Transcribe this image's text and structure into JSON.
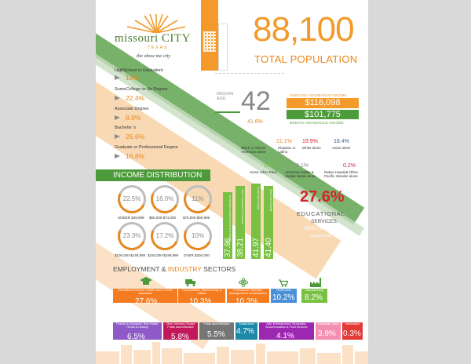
{
  "brand": {
    "name": "missouri CITY",
    "state": "TEXAS",
    "tagline": "the show me city"
  },
  "population": {
    "value": "88,100",
    "label": "TOTAL POPULATION"
  },
  "education_levels": [
    {
      "label": "HighSchool or Equivalent",
      "value": "19%"
    },
    {
      "label": "SomeCollege or No Degree",
      "value": "22.4%"
    },
    {
      "label": "Associate Degree",
      "value": "8.8%"
    },
    {
      "label": "Bachelor 's",
      "value": "26.6%"
    },
    {
      "label": "Graduate or Professional Degree",
      "value": "16.8%"
    }
  ],
  "median_age": {
    "label": "MEDIAN AGE",
    "value": "42",
    "sub_value": "41.6%"
  },
  "household_income": {
    "average_label": "AVERAGE HOUSEHOLD INCOME",
    "average_value": "$116,098",
    "median_value": "$101,775",
    "median_label": "MEDIAN HOUSEHOLD INCOME"
  },
  "race": [
    {
      "label": "Black or African American alone",
      "value": ""
    },
    {
      "label": "Hispanic or Latino",
      "value": "21.1%"
    },
    {
      "label": "White alone",
      "value": "19.9%"
    },
    {
      "label": "Asian alone",
      "value": "18.4%"
    },
    {
      "label": "Some other Race",
      "value": "0.5%"
    },
    {
      "label": "American Indian & Alaska Native alone",
      "value": "0.1%"
    },
    {
      "label": "Native Hawaii& Other Pacific Islander alone",
      "value": "0.2%"
    }
  ],
  "income_distribution": {
    "title": "INCOME DISTRIBUTION",
    "rings": [
      {
        "value": "22.5%",
        "label": "UNDER $49,999"
      },
      {
        "value": "16.0%",
        "label": "$50,000-$74,000"
      },
      {
        "value": "11%",
        "label": "$75,000-$99,999"
      },
      {
        "value": "23.3%",
        "label": "$100,000-$149,999"
      },
      {
        "value": "17.2%",
        "label": "$150,000-$199,999"
      },
      {
        "value": "10%",
        "label": "OVER $200,000"
      }
    ]
  },
  "median_age_bars": [
    {
      "value": "37.96",
      "label": "MEDIAN AGE BLACK/AFRICAN AMERICAN",
      "fill": 0.53
    },
    {
      "value": "38.21",
      "label": "MEDIAN AGE HISPANIC/LATINO",
      "fill": 0.58
    },
    {
      "value": "41.97",
      "label": "MEDIAN AGE WHITE",
      "fill": 0.6
    },
    {
      "value": "41.40",
      "label": "MEDIAN AGE ASIAN",
      "fill": 0.58
    }
  ],
  "top_sector": {
    "value": "27.6%",
    "line1": "EDUCATIONAL",
    "line2": "SERVICES,",
    "line3": "HEALTH CARE &",
    "line4": "ASSISTANCE"
  },
  "employment": {
    "title_a": "EMPLOYMENT & ",
    "title_b": "INDUSTRY",
    "title_c": " SECTORS",
    "row1": [
      {
        "label": "Educational Services, Health Care & Social Assistance",
        "value": "27.6%",
        "color": "#f47b20"
      },
      {
        "label": "Transportation, Warehousing, & Utilities",
        "value": "10.3%",
        "color": "#f47b20"
      },
      {
        "label": "Professional, Scientific, Management & Administrative",
        "value": "10.3%",
        "color": "#f47b20"
      },
      {
        "label": "Retail trade",
        "value": "10.2%",
        "color": "#4a90d9"
      },
      {
        "label": "Manufacturing",
        "value": "8.2%",
        "color": "#7ac143"
      }
    ],
    "row2": [
      {
        "label": "Finance & Insurance, Real Estate, Rental & Leasing",
        "value": "6.5%",
        "color": "#8e5ac8"
      },
      {
        "label": "Other Services, Except Public Administration",
        "value": "5.8%",
        "color": "#c2185b"
      },
      {
        "label": "Public Administration",
        "value": "5.5%",
        "color": "#757575"
      },
      {
        "label": "Construction",
        "value": "4.7%",
        "color": "#1e88a8"
      },
      {
        "label": "Arts, Entertainment, Recreation, Accommodation & Food Services",
        "value": "4.1%",
        "color": "#9c27b0"
      },
      {
        "label": "Wholesale Trade",
        "value": "3.9%",
        "color": "#f48fb1"
      },
      {
        "label": "Information",
        "value": "0.3%",
        "color": "#e53935"
      }
    ]
  },
  "colors": {
    "orange": "#f39a2b",
    "green": "#4c9a3a",
    "light_green": "#7ac143",
    "red": "#d8232a"
  }
}
